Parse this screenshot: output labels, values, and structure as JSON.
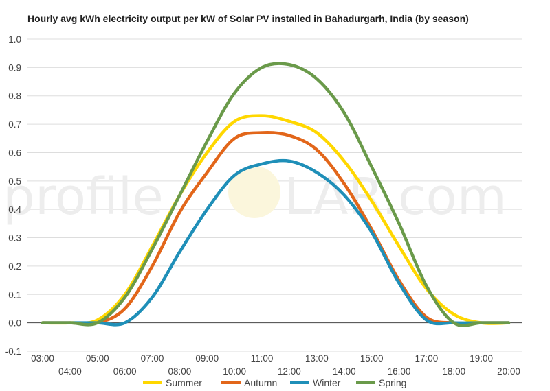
{
  "chart_data": {
    "type": "line",
    "title": "Hourly avg kWh electricity output per kW of Solar PV installed in Bahadurgarh, India (by season)",
    "xlabel": "",
    "ylabel": "",
    "ylim": [
      -0.1,
      1.0
    ],
    "yticks": [
      "1.0",
      "0.9",
      "0.8",
      "0.7",
      "0.6",
      "0.5",
      "0.4",
      "0.3",
      "0.2",
      "0.1",
      "0.0",
      "-0.1"
    ],
    "x": [
      "03:00",
      "04:00",
      "05:00",
      "06:00",
      "07:00",
      "08:00",
      "09:00",
      "10:00",
      "11:00",
      "12:00",
      "13:00",
      "14:00",
      "15:00",
      "16:00",
      "17:00",
      "18:00",
      "19:00",
      "20:00"
    ],
    "grid": true,
    "legend_position": "bottom",
    "series": [
      {
        "name": "Summer",
        "color": "#ffd700",
        "values": [
          0,
          0,
          0.01,
          0.1,
          0.27,
          0.45,
          0.6,
          0.71,
          0.73,
          0.71,
          0.67,
          0.57,
          0.43,
          0.27,
          0.12,
          0.03,
          0.0,
          0
        ]
      },
      {
        "name": "Autumn",
        "color": "#e2661a",
        "values": [
          0,
          0,
          0,
          0.05,
          0.2,
          0.39,
          0.53,
          0.65,
          0.67,
          0.66,
          0.61,
          0.49,
          0.33,
          0.15,
          0.02,
          0,
          0,
          0
        ]
      },
      {
        "name": "Winter",
        "color": "#1f8fb8",
        "values": [
          0,
          0,
          0,
          0,
          0.09,
          0.25,
          0.4,
          0.52,
          0.56,
          0.57,
          0.53,
          0.45,
          0.32,
          0.14,
          0.01,
          0,
          0,
          0
        ]
      },
      {
        "name": "Spring",
        "color": "#6a9a4a",
        "values": [
          0,
          0,
          0,
          0.09,
          0.26,
          0.45,
          0.64,
          0.81,
          0.9,
          0.91,
          0.86,
          0.74,
          0.55,
          0.35,
          0.13,
          0.0,
          0,
          0
        ]
      }
    ]
  },
  "watermark": {
    "left": "profile",
    "right": "LAR.com"
  }
}
